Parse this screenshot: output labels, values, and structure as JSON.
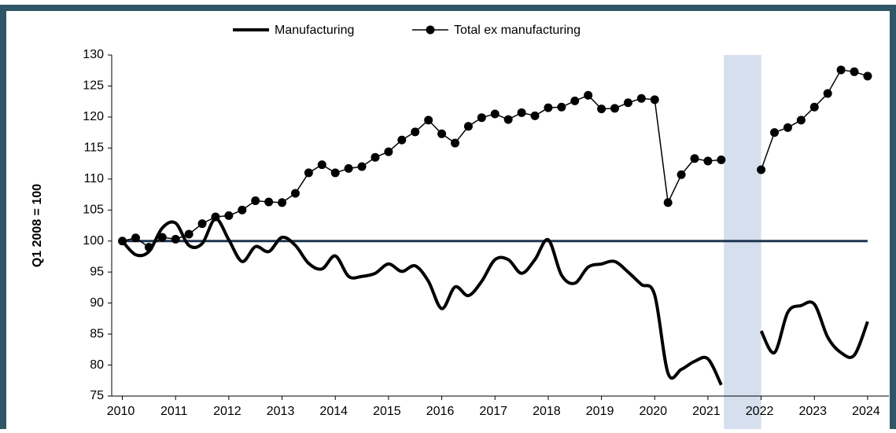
{
  "chart_data": {
    "type": "line",
    "y_label": "Q1 2008 = 100",
    "x": [
      2010.0,
      2010.25,
      2010.5,
      2010.75,
      2011.0,
      2011.25,
      2011.5,
      2011.75,
      2012.0,
      2012.25,
      2012.5,
      2012.75,
      2013.0,
      2013.25,
      2013.5,
      2013.75,
      2014.0,
      2014.25,
      2014.5,
      2014.75,
      2015.0,
      2015.25,
      2015.5,
      2015.75,
      2016.0,
      2016.25,
      2016.5,
      2016.75,
      2017.0,
      2017.25,
      2017.5,
      2017.75,
      2018.0,
      2018.25,
      2018.5,
      2018.75,
      2019.0,
      2019.25,
      2019.5,
      2019.75,
      2020.0,
      2020.25,
      2020.5,
      2020.75,
      2021.0,
      2021.25,
      2021.5,
      2021.75,
      2022.0,
      2022.25,
      2022.5,
      2022.75,
      2023.0,
      2023.25,
      2023.5,
      2023.75,
      2024.0
    ],
    "series": [
      {
        "name": "Manufacturing",
        "color": "#000000",
        "marker": false,
        "smooth": true,
        "values": [
          100,
          97.8,
          98.3,
          102.1,
          102.9,
          99.3,
          99.6,
          103.6,
          100.2,
          96.7,
          99.1,
          98.3,
          100.6,
          99.3,
          96.4,
          95.5,
          97.6,
          94.3,
          94.3,
          94.8,
          96.3,
          95.1,
          96.0,
          93.5,
          89.1,
          92.6,
          91.2,
          93.5,
          97.0,
          97.0,
          94.8,
          97.0,
          100.2,
          94.5,
          93.2,
          95.8,
          96.3,
          96.7,
          95.0,
          93.0,
          91.3,
          78.7,
          79.3,
          80.6,
          81.0,
          76.8,
          null,
          null,
          85.5,
          82.0,
          88.5,
          89.6,
          89.8,
          84.5,
          82.0,
          81.6,
          87.0
        ]
      },
      {
        "name": "Total ex manufacturing",
        "color": "#000000",
        "marker": true,
        "smooth": false,
        "values": [
          100,
          100.5,
          99.0,
          100.6,
          100.3,
          101.1,
          102.8,
          103.9,
          104.1,
          105.0,
          106.5,
          106.3,
          106.2,
          107.7,
          111.0,
          112.3,
          111.0,
          111.7,
          112.0,
          113.5,
          114.4,
          116.3,
          117.6,
          119.5,
          117.3,
          115.8,
          118.5,
          119.9,
          120.5,
          119.6,
          120.7,
          120.2,
          121.5,
          121.6,
          122.6,
          123.5,
          121.3,
          121.4,
          122.3,
          123.0,
          122.8,
          106.2,
          110.7,
          113.3,
          112.9,
          113.1,
          null,
          null,
          111.5,
          117.5,
          118.3,
          119.5,
          121.6,
          123.8,
          127.6,
          127.3,
          126.6
        ]
      }
    ],
    "reference_line": {
      "value": 100,
      "color": "#1f3552"
    },
    "shaded_range": {
      "x": [
        2021.3,
        2022.0
      ],
      "color": "#d5dfee"
    },
    "xlim": [
      2009.8,
      2024.4
    ],
    "xticks": [
      2010,
      2011,
      2012,
      2013,
      2014,
      2015,
      2016,
      2017,
      2018,
      2019,
      2020,
      2021,
      2022,
      2023,
      2024
    ],
    "ylim": [
      75,
      130
    ],
    "yticks": [
      75,
      80,
      85,
      90,
      95,
      100,
      105,
      110,
      115,
      120,
      125,
      130
    ],
    "grid": false,
    "legend": "top"
  }
}
